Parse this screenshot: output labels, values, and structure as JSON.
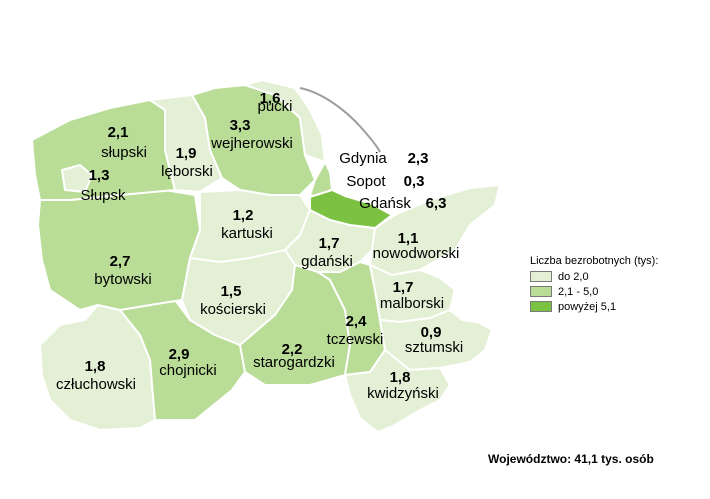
{
  "colors": {
    "low": "#e4f0d6",
    "mid": "#b9dc97",
    "high": "#7cc242",
    "sea_outline": "#9e9e9e"
  },
  "counties": [
    {
      "id": "pucki",
      "name": "pucki",
      "value": "1,6",
      "class": "low"
    },
    {
      "id": "wejherowski",
      "name": "wejherowski",
      "value": "3,3",
      "class": "mid"
    },
    {
      "id": "slupski",
      "name": "słupski",
      "value": "2,1",
      "class": "mid"
    },
    {
      "id": "leborski",
      "name": "lęborski",
      "value": "1,9",
      "class": "low"
    },
    {
      "id": "slupsk",
      "name": "Słupsk",
      "value": "1,3",
      "class": "low"
    },
    {
      "id": "kartuski",
      "name": "kartuski",
      "value": "1,2",
      "class": "low"
    },
    {
      "id": "bytowski",
      "name": "bytowski",
      "value": "2,7",
      "class": "mid"
    },
    {
      "id": "gdanski",
      "name": "gdański",
      "value": "1,7",
      "class": "low"
    },
    {
      "id": "nowodworski",
      "name": "nowodworski",
      "value": "1,1",
      "class": "low"
    },
    {
      "id": "koscierski",
      "name": "kościerski",
      "value": "1,5",
      "class": "low"
    },
    {
      "id": "malborski",
      "name": "malborski",
      "value": "1,7",
      "class": "low"
    },
    {
      "id": "tczewski",
      "name": "tczewski",
      "value": "2,4",
      "class": "mid"
    },
    {
      "id": "sztumski",
      "name": "sztumski",
      "value": "0,9",
      "class": "low"
    },
    {
      "id": "starogardzki",
      "name": "starogardzki",
      "value": "2,2",
      "class": "mid"
    },
    {
      "id": "chojnicki",
      "name": "chojnicki",
      "value": "2,9",
      "class": "mid"
    },
    {
      "id": "czluchowski",
      "name": "człuchowski",
      "value": "1,8",
      "class": "low"
    },
    {
      "id": "kwidzynski",
      "name": "kwidzyński",
      "value": "1,8",
      "class": "low"
    }
  ],
  "cities": [
    {
      "id": "gdynia",
      "name": "Gdynia",
      "value": "2,3",
      "class": "mid"
    },
    {
      "id": "sopot",
      "name": "Sopot",
      "value": "0,3",
      "class": "low"
    },
    {
      "id": "gdansk",
      "name": "Gdańsk",
      "value": "6,3",
      "class": "high"
    }
  ],
  "legend": {
    "title": "Liczba bezrobotnych (tys):",
    "items": [
      {
        "label": "do 2,0",
        "class": "low"
      },
      {
        "label": "2,1 - 5,0",
        "class": "mid"
      },
      {
        "label": "powyżej 5,1",
        "class": "high"
      }
    ]
  },
  "summary": "Województwo: 41,1 tys. osób"
}
